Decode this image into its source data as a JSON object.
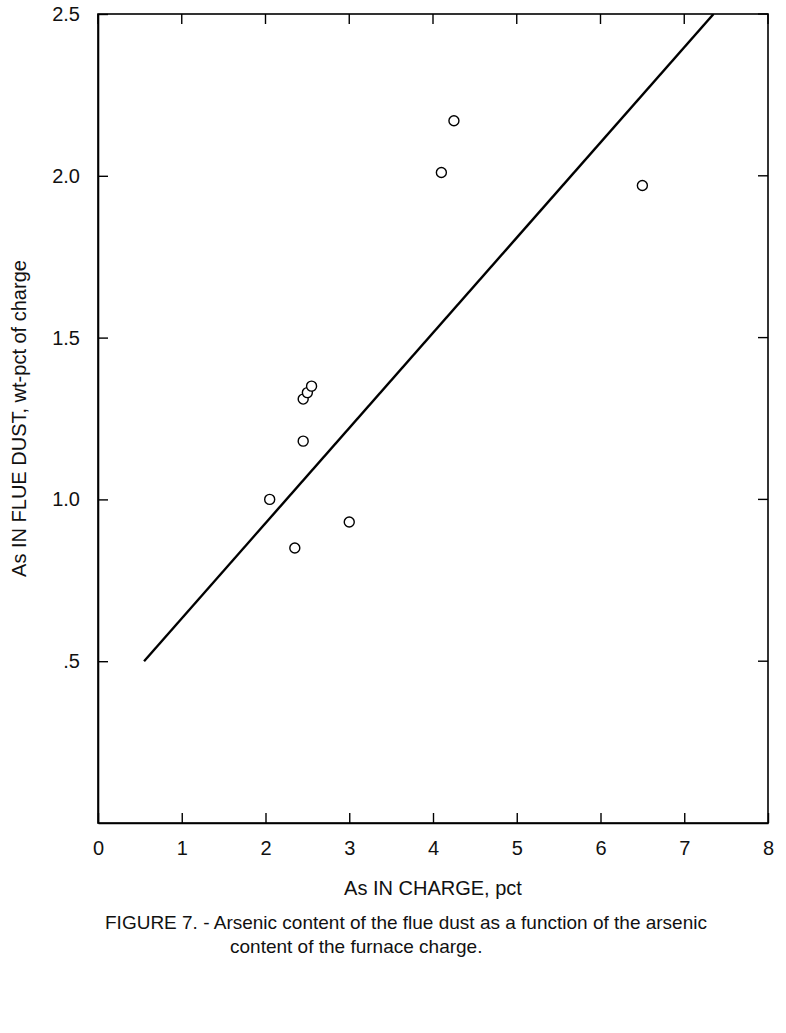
{
  "chart_data": {
    "type": "scatter",
    "caption": "FIGURE 7. - Arsenic content of the flue dust as a function of the arsenic content of the furnace charge.",
    "x_label": "As IN CHARGE, pct",
    "y_label": "As IN FLUE DUST, wt-pct of charge",
    "xlim": [
      0,
      8
    ],
    "ylim": [
      0,
      2.5
    ],
    "xticks": [
      0,
      1,
      2,
      3,
      4,
      5,
      6,
      7,
      8
    ],
    "yticks": [
      {
        "value": 0.5,
        "label": ".5"
      },
      {
        "value": 1.0,
        "label": "1.0"
      },
      {
        "value": 1.5,
        "label": "1.5"
      },
      {
        "value": 2.0,
        "label": "2.0"
      },
      {
        "value": 2.5,
        "label": "2.5"
      }
    ],
    "grid": false,
    "series": [
      {
        "type": "scatter",
        "marker": "circle",
        "color": "#000000",
        "x": [
          2.05,
          2.35,
          2.45,
          2.45,
          2.5,
          2.55,
          3.0,
          4.1,
          4.25,
          6.5
        ],
        "values": [
          1.0,
          0.85,
          1.18,
          1.31,
          1.33,
          1.35,
          0.93,
          2.01,
          2.17,
          1.97
        ]
      },
      {
        "type": "line",
        "line_style": "solid",
        "color": "#000000",
        "x": [
          0.55,
          7.35
        ],
        "values": [
          0.5,
          2.5
        ]
      }
    ]
  }
}
